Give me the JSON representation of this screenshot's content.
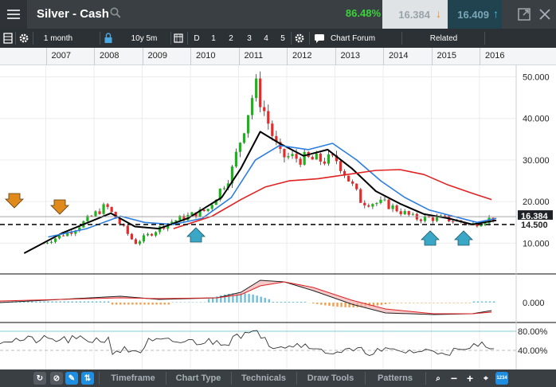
{
  "header": {
    "title": "Silver - Cash",
    "change_pct": "86.48%",
    "bid": "16.384",
    "ask": "16.409"
  },
  "toolbar": {
    "interval": "1 month",
    "range": "10y 5m",
    "period_buttons": [
      "D",
      "1",
      "2",
      "3",
      "4",
      "5"
    ],
    "chart_forum": "Chart Forum",
    "related": "Related"
  },
  "years": [
    "2007",
    "2008",
    "2009",
    "2010",
    "2011",
    "2012",
    "2013",
    "2014",
    "2015",
    "2016"
  ],
  "price_axis": {
    "ticks": [
      "50.000",
      "40.000",
      "30.000",
      "20.000",
      "10.000"
    ],
    "current_price_label": "16.384",
    "support_label": "14.500"
  },
  "macd_axis": {
    "ticks": [
      "0.000"
    ]
  },
  "rsi_axis": {
    "ticks": [
      "80.00%",
      "40.00%"
    ]
  },
  "bottom_bar": {
    "tabs": [
      "Timeframe",
      "Chart Type",
      "Technicals",
      "Draw Tools",
      "Patterns"
    ],
    "zoom_badge": "1234"
  },
  "chart_data": {
    "type": "candlestick",
    "title": "Silver - Cash",
    "x_unit": "year",
    "ylim": [
      3,
      52
    ],
    "current_price": 16.384,
    "support_level": 14.5,
    "candles_year_close": [
      {
        "year": 2006.9,
        "close": 10.0
      },
      {
        "year": 2007.5,
        "close": 13.0
      },
      {
        "year": 2008.2,
        "close": 19.0
      },
      {
        "year": 2008.8,
        "close": 10.0
      },
      {
        "year": 2009.5,
        "close": 15.0
      },
      {
        "year": 2010.3,
        "close": 18.0
      },
      {
        "year": 2010.8,
        "close": 27.0
      },
      {
        "year": 2011.3,
        "close": 48.0
      },
      {
        "year": 2011.8,
        "close": 31.0
      },
      {
        "year": 2012.5,
        "close": 30.0
      },
      {
        "year": 2013.0,
        "close": 30.0
      },
      {
        "year": 2013.5,
        "close": 20.0
      },
      {
        "year": 2014.0,
        "close": 19.5
      },
      {
        "year": 2014.6,
        "close": 16.0
      },
      {
        "year": 2015.2,
        "close": 16.0
      },
      {
        "year": 2015.8,
        "close": 14.5
      },
      {
        "year": 2016.3,
        "close": 16.4
      }
    ],
    "series": [
      {
        "name": "",
        "color": "#000000",
        "points": [
          [
            2006.5,
            7.6
          ],
          [
            2007.3,
            12.5
          ],
          [
            2008.3,
            17.2
          ],
          [
            2008.8,
            14.0
          ],
          [
            2009.3,
            13.5
          ],
          [
            2009.9,
            16.0
          ],
          [
            2010.6,
            21.0
          ],
          [
            2011.0,
            28.0
          ],
          [
            2011.4,
            36.8
          ],
          [
            2011.8,
            34.0
          ],
          [
            2012.3,
            31.0
          ],
          [
            2012.8,
            32.5
          ],
          [
            2013.3,
            28.0
          ],
          [
            2013.8,
            22.5
          ],
          [
            2014.3,
            19.5
          ],
          [
            2014.8,
            17.0
          ],
          [
            2015.3,
            16.0
          ],
          [
            2015.8,
            14.5
          ],
          [
            2016.3,
            15.5
          ]
        ]
      },
      {
        "name": "",
        "color": "#2b7de0",
        "points": [
          [
            2007.0,
            11.5
          ],
          [
            2007.8,
            13.5
          ],
          [
            2008.5,
            16.5
          ],
          [
            2009.0,
            15.0
          ],
          [
            2009.6,
            14.5
          ],
          [
            2010.2,
            16.0
          ],
          [
            2010.8,
            21.0
          ],
          [
            2011.3,
            30.0
          ],
          [
            2011.8,
            33.5
          ],
          [
            2012.4,
            32.5
          ],
          [
            2012.9,
            34.0
          ],
          [
            2013.4,
            30.0
          ],
          [
            2013.9,
            25.0
          ],
          [
            2014.4,
            21.0
          ],
          [
            2014.9,
            18.0
          ],
          [
            2015.4,
            16.5
          ],
          [
            2015.9,
            15.0
          ],
          [
            2016.3,
            16.0
          ]
        ]
      },
      {
        "name": "",
        "color": "#e02222",
        "points": [
          [
            2009.6,
            13.5
          ],
          [
            2010.4,
            16.5
          ],
          [
            2011.0,
            20.5
          ],
          [
            2011.5,
            23.5
          ],
          [
            2012.0,
            25.0
          ],
          [
            2012.6,
            25.5
          ],
          [
            2013.2,
            26.5
          ],
          [
            2013.8,
            27.5
          ],
          [
            2014.3,
            27.7
          ],
          [
            2014.8,
            26.5
          ],
          [
            2015.3,
            24.0
          ],
          [
            2015.8,
            22.0
          ],
          [
            2016.2,
            20.5
          ]
        ]
      }
    ],
    "rsi_reference_levels": [
      80,
      40
    ]
  },
  "colors": {
    "up": "#1fb21f",
    "down": "#e52a2a",
    "buy_signal": "#3aa7c6",
    "sell_signal": "#e08a1c",
    "macd_hist_pos": "#6fbfd8",
    "macd_hist_neg": "#f0a04a"
  }
}
